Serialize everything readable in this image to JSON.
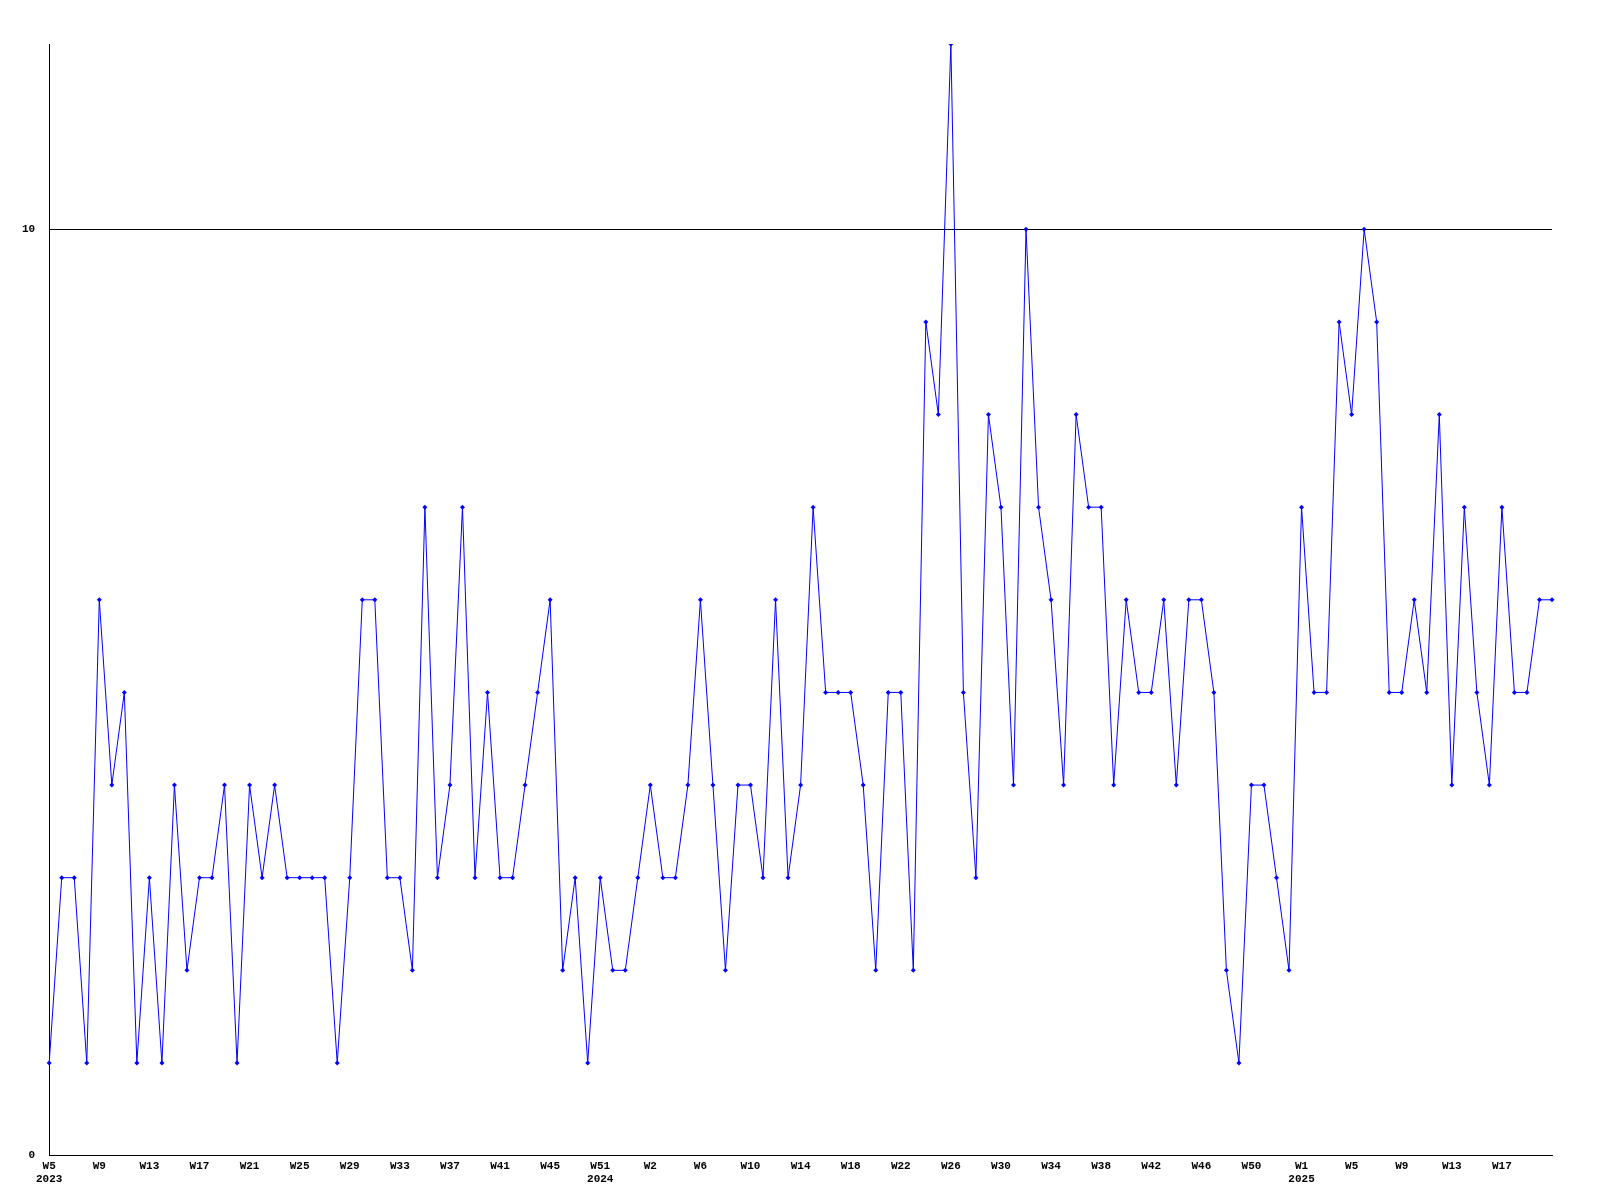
{
  "chart_data": {
    "type": "line",
    "categories": [
      "W5\n2023",
      null,
      null,
      null,
      "W9",
      null,
      null,
      null,
      "W13",
      null,
      null,
      null,
      "W17",
      null,
      null,
      null,
      "W21",
      null,
      null,
      null,
      "W25",
      null,
      null,
      null,
      "W29",
      null,
      null,
      null,
      "W33",
      null,
      null,
      null,
      "W37",
      null,
      null,
      null,
      "W41",
      null,
      null,
      null,
      "W45",
      null,
      null,
      null,
      "W51\n2024",
      null,
      null,
      null,
      "W2",
      null,
      null,
      null,
      "W6",
      null,
      null,
      null,
      "W10",
      null,
      null,
      null,
      "W14",
      null,
      null,
      null,
      "W18",
      null,
      null,
      null,
      "W22",
      null,
      null,
      null,
      "W26",
      null,
      null,
      null,
      "W30",
      null,
      null,
      null,
      "W34",
      null,
      null,
      null,
      "W38",
      null,
      null,
      null,
      "W42",
      null,
      null,
      null,
      "W46",
      null,
      null,
      null,
      "W50",
      null,
      null,
      null,
      "W1\n2025",
      null,
      null,
      null,
      "W5",
      null,
      null,
      null,
      "W9",
      null,
      null,
      null,
      "W13",
      null,
      null,
      null,
      "W17",
      null,
      null,
      null,
      null
    ],
    "series": [
      {
        "color": "#0000ff",
        "values": [
          1,
          3,
          3,
          1,
          6,
          4,
          5,
          1,
          3,
          1,
          4,
          2,
          3,
          3,
          4,
          1,
          4,
          3,
          4,
          3,
          3,
          3,
          3,
          1,
          3,
          6,
          6,
          3,
          3,
          2,
          7,
          3,
          4,
          7,
          3,
          5,
          3,
          3,
          4,
          5,
          6,
          2,
          3,
          1,
          3,
          2,
          2,
          3,
          4,
          3,
          3,
          4,
          6,
          4,
          2,
          4,
          4,
          3,
          6,
          3,
          4,
          7,
          5,
          5,
          5,
          4,
          2,
          5,
          5,
          2,
          9,
          8,
          12,
          5,
          3,
          8,
          7,
          4,
          10,
          7,
          6,
          4,
          8,
          7,
          7,
          4,
          6,
          5,
          5,
          6,
          4,
          6,
          6,
          5,
          2,
          1,
          4,
          4,
          3,
          2,
          7,
          5,
          5,
          9,
          8,
          10,
          9,
          5,
          5,
          6,
          5,
          8,
          4,
          7,
          5,
          4,
          7,
          5,
          5,
          6,
          6
        ]
      }
    ],
    "ylim": [
      0,
      12
    ],
    "yticks": [
      0,
      10
    ],
    "grid": "y",
    "legend": false,
    "marker": "diamond",
    "line_style": "solid"
  }
}
